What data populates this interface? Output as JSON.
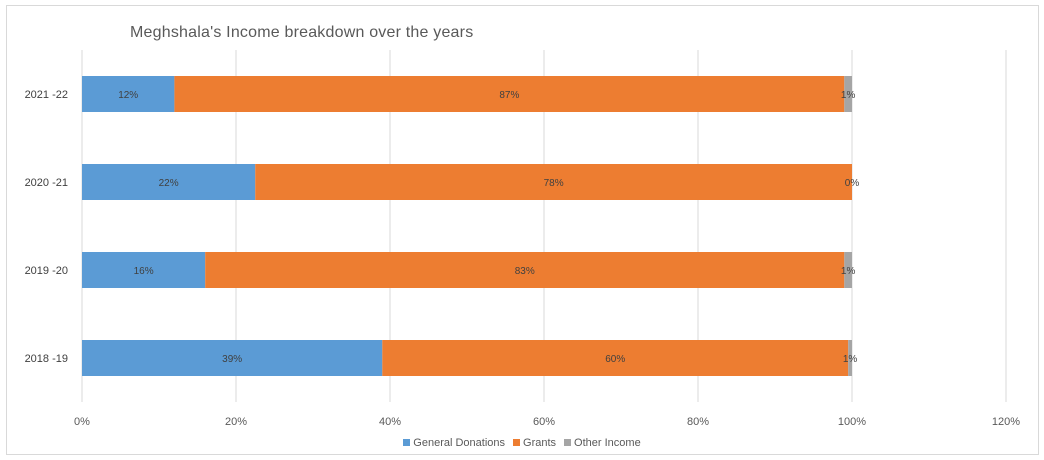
{
  "chart_data": {
    "type": "bar",
    "orientation": "horizontal",
    "stacked": true,
    "title": "Meghshala's Income breakdown over the years",
    "categories": [
      "2021 -22",
      "2020 -21",
      "2019 -20",
      "2018 -19"
    ],
    "series": [
      {
        "name": "General Donations",
        "color": "#5b9bd5",
        "values": [
          12,
          22.5,
          16,
          39
        ],
        "labels": [
          "12%",
          "22%",
          "16%",
          "39%"
        ]
      },
      {
        "name": "Grants",
        "color": "#ed7d31",
        "values": [
          87,
          77.5,
          83,
          60.5
        ],
        "labels": [
          "87%",
          "78%",
          "83%",
          "60%"
        ]
      },
      {
        "name": "Other Income",
        "color": "#a5a5a5",
        "values": [
          1,
          0,
          1,
          0.5
        ],
        "labels": [
          "1%",
          "0%",
          "1%",
          "1%"
        ]
      }
    ],
    "xlim": [
      0,
      120
    ],
    "xticks": [
      "0%",
      "20%",
      "40%",
      "60%",
      "80%",
      "100%",
      "120%"
    ],
    "grid": true,
    "legend_position": "bottom"
  }
}
